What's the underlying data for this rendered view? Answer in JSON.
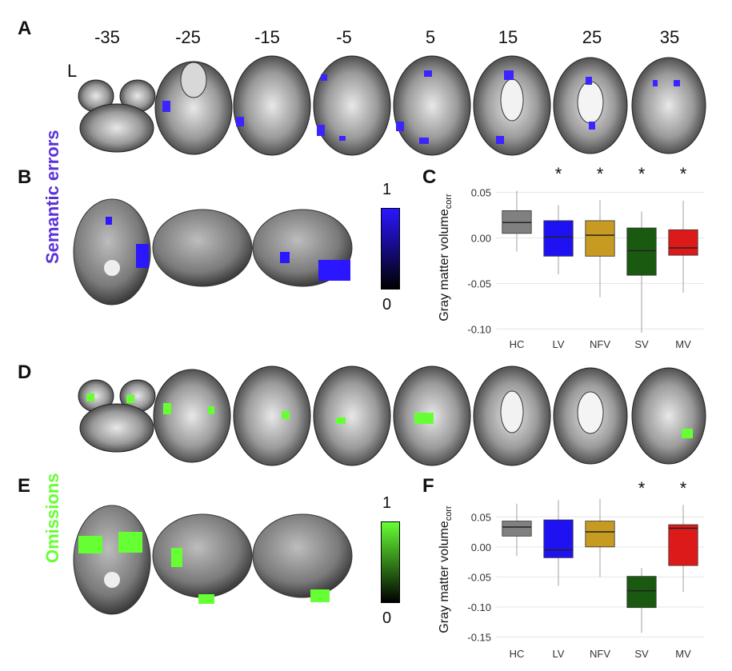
{
  "panels": {
    "A": "A",
    "B": "B",
    "C": "C",
    "D": "D",
    "E": "E",
    "F": "F"
  },
  "slice_labels": [
    "-35",
    "-25",
    "-15",
    "-5",
    "5",
    "15",
    "25",
    "35"
  ],
  "left_marker": "L",
  "side_labels": {
    "semantic": "Semantic errors",
    "omissions": "Omissions"
  },
  "colorbars": {
    "top": {
      "max": "1",
      "min": "0",
      "color": "#2a16ff"
    },
    "bottom": {
      "max": "1",
      "min": "0",
      "color": "#66ff33"
    }
  },
  "colors": {
    "semantic": "#5a32d8",
    "omissions": "#66ff33",
    "HC": "#808080",
    "LV": "#1f12f2",
    "NFV": "#c79a22",
    "SV": "#1a5a10",
    "MV": "#dd1a1a"
  },
  "chart_data": [
    {
      "type": "box",
      "ylabel": "Gray matter volume",
      "ylabel_sub": "corr",
      "categories": [
        "HC",
        "LV",
        "NFV",
        "SV",
        "MV"
      ],
      "yticks": [
        "0.05",
        "0.00",
        "-0.05",
        "-0.10"
      ],
      "ytick_values": [
        0.05,
        0.0,
        -0.05,
        -0.1
      ],
      "ylim": [
        -0.105,
        0.062
      ],
      "significance": [
        "",
        "*",
        "*",
        "*",
        "*"
      ],
      "boxes": [
        {
          "min": -0.015,
          "q1": 0.005,
          "median": 0.017,
          "q3": 0.03,
          "max": 0.052
        },
        {
          "min": -0.04,
          "q1": -0.02,
          "median": 0.001,
          "q3": 0.019,
          "max": 0.036
        },
        {
          "min": -0.065,
          "q1": -0.02,
          "median": 0.003,
          "q3": 0.019,
          "max": 0.042
        },
        {
          "min": -0.104,
          "q1": -0.041,
          "median": -0.014,
          "q3": 0.011,
          "max": 0.029
        },
        {
          "min": -0.06,
          "q1": -0.019,
          "median": -0.011,
          "q3": 0.009,
          "max": 0.041
        }
      ]
    },
    {
      "type": "box",
      "ylabel": "Gray matter volume",
      "ylabel_sub": "corr",
      "categories": [
        "HC",
        "LV",
        "NFV",
        "SV",
        "MV"
      ],
      "yticks": [
        "0.05",
        "0.00",
        "-0.05",
        "-0.10",
        "-0.15"
      ],
      "ytick_values": [
        0.05,
        0.0,
        -0.05,
        -0.1,
        -0.15
      ],
      "ylim": [
        -0.16,
        0.085
      ],
      "significance": [
        "",
        "",
        "",
        "*",
        "*"
      ],
      "boxes": [
        {
          "min": -0.015,
          "q1": 0.018,
          "median": 0.033,
          "q3": 0.043,
          "max": 0.072
        },
        {
          "min": -0.065,
          "q1": -0.018,
          "median": -0.005,
          "q3": 0.045,
          "max": 0.078
        },
        {
          "min": -0.05,
          "q1": 0.0,
          "median": 0.025,
          "q3": 0.043,
          "max": 0.08
        },
        {
          "min": -0.143,
          "q1": -0.101,
          "median": -0.073,
          "q3": -0.049,
          "max": -0.035
        },
        {
          "min": -0.075,
          "q1": -0.031,
          "median": 0.031,
          "q3": 0.037,
          "max": 0.07
        }
      ]
    }
  ]
}
